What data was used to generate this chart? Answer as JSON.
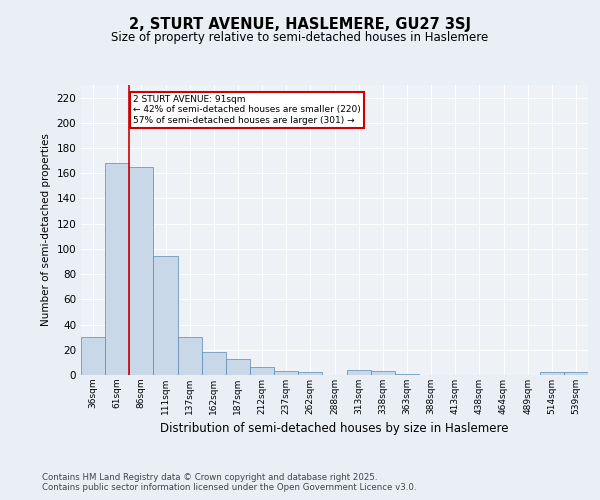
{
  "title": "2, STURT AVENUE, HASLEMERE, GU27 3SJ",
  "subtitle": "Size of property relative to semi-detached houses in Haslemere",
  "xlabel": "Distribution of semi-detached houses by size in Haslemere",
  "ylabel": "Number of semi-detached properties",
  "categories": [
    "36sqm",
    "61sqm",
    "86sqm",
    "111sqm",
    "137sqm",
    "162sqm",
    "187sqm",
    "212sqm",
    "237sqm",
    "262sqm",
    "288sqm",
    "313sqm",
    "338sqm",
    "363sqm",
    "388sqm",
    "413sqm",
    "438sqm",
    "464sqm",
    "489sqm",
    "514sqm",
    "539sqm"
  ],
  "values": [
    30,
    168,
    165,
    94,
    30,
    18,
    13,
    6,
    3,
    2,
    0,
    4,
    3,
    1,
    0,
    0,
    0,
    0,
    0,
    2,
    2
  ],
  "bar_color": "#c8d8e8",
  "bar_edge_color": "#5a8ab0",
  "vline_x_index": 2,
  "annotation_title": "2 STURT AVENUE: 91sqm",
  "annotation_line1": "← 42% of semi-detached houses are smaller (220)",
  "annotation_line2": "57% of semi-detached houses are larger (301) →",
  "annotation_box_color": "#ffffff",
  "annotation_box_edge": "#cc0000",
  "vline_color": "#cc0000",
  "ylim": [
    0,
    230
  ],
  "yticks": [
    0,
    20,
    40,
    60,
    80,
    100,
    120,
    140,
    160,
    180,
    200,
    220
  ],
  "footer": "Contains HM Land Registry data © Crown copyright and database right 2025.\nContains public sector information licensed under the Open Government Licence v3.0.",
  "bg_color": "#eaeff5",
  "plot_bg_color": "#eef2f7"
}
